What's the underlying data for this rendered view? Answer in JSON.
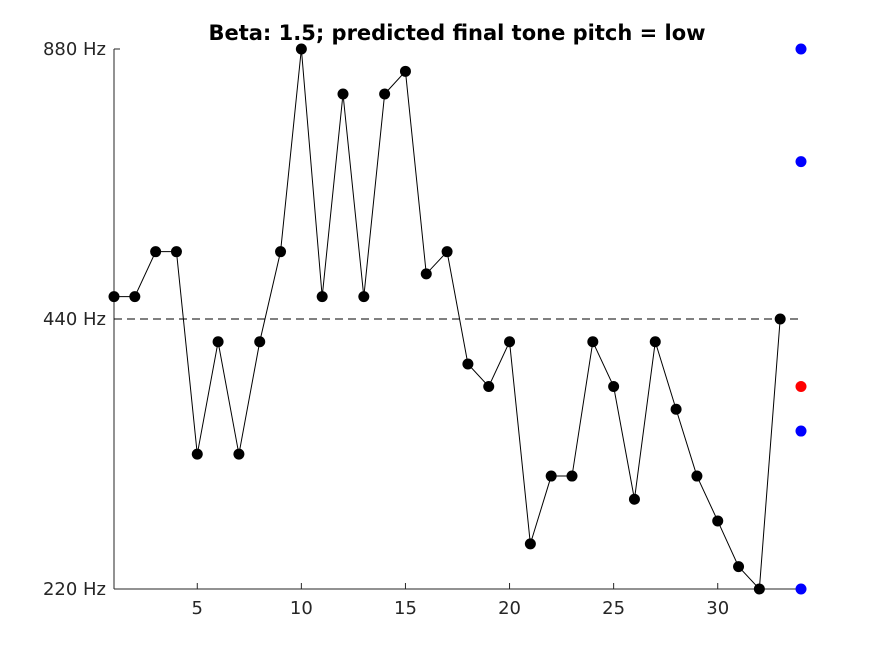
{
  "chart_data": {
    "type": "line",
    "title": "Beta: 1.5; predicted final tone pitch = low",
    "xlabel": "",
    "ylabel": "",
    "xlim": [
      1,
      34
    ],
    "ylim": [
      220,
      880
    ],
    "x_ticks": [
      5,
      10,
      15,
      20,
      25,
      30
    ],
    "y_ticks": [
      {
        "value": 220,
        "label": "220 Hz"
      },
      {
        "value": 440,
        "label": "440 Hz"
      },
      {
        "value": 880,
        "label": "880 Hz"
      }
    ],
    "reference_line": {
      "y": 440,
      "style": "dashed"
    },
    "grid": false,
    "colors": {
      "series": "#000000",
      "candidate": "#0000ff",
      "predicted": "#ff0000",
      "axis": "#262626"
    },
    "series": [
      {
        "x": [
          1,
          2,
          3,
          4,
          5,
          6,
          7,
          8,
          9,
          10,
          11,
          12,
          13,
          14,
          15,
          16,
          17,
          18,
          19,
          20,
          21,
          22,
          23,
          24,
          25,
          26,
          27,
          28,
          29,
          30,
          31,
          32,
          33
        ],
        "y": [
          466,
          466,
          523,
          523,
          311,
          415,
          311,
          415,
          523,
          880,
          466,
          784,
          466,
          784,
          831,
          494,
          523,
          392,
          370,
          415,
          247,
          294,
          294,
          415,
          370,
          277,
          415,
          349,
          294,
          262,
          233,
          220,
          440
        ]
      }
    ],
    "candidate_tones": {
      "x": 34,
      "y": [
        880,
        659,
        330,
        220
      ]
    },
    "predicted_tone": {
      "x": 34,
      "y": 370
    }
  }
}
